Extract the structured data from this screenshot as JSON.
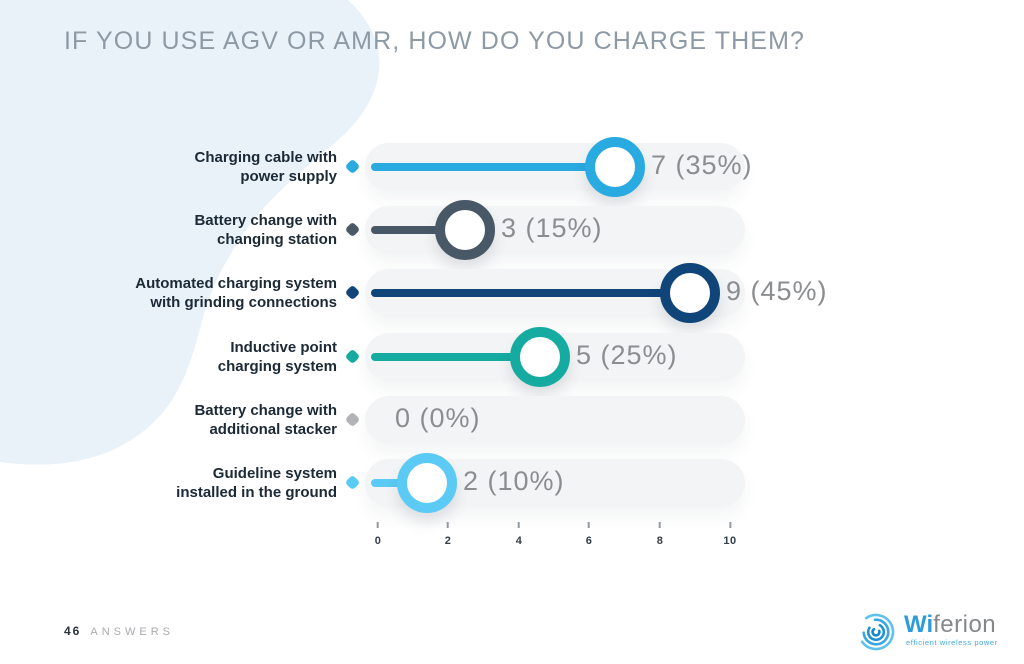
{
  "title": "IF YOU USE AGV OR AMR, HOW DO YOU CHARGE THEM?",
  "chart_data": {
    "type": "bar",
    "variant": "horizontal-lollipop",
    "title": "IF YOU USE AGV OR AMR, HOW DO YOU CHARGE THEM?",
    "categories": [
      "Charging cable with power supply",
      "Battery change with changing station",
      "Automated charging system with grinding connections",
      "Inductive point charging system",
      "Battery change with additional stacker",
      "Guideline system installed in the ground"
    ],
    "values": [
      7,
      3,
      9,
      5,
      0,
      2
    ],
    "value_labels": [
      "7 (35%)",
      "3 (15%)",
      "9 (45%)",
      "5 (25%)",
      "0 (0%)",
      "2 (10%)"
    ],
    "colors": [
      "#29ABE2",
      "#485866",
      "#10457A",
      "#16ABA1",
      "#B1B3B6",
      "#5BCBF5"
    ],
    "rows": [
      {
        "label_lines": [
          "Charging cable with",
          "power supply"
        ],
        "value": 7,
        "display": "7 (35%)",
        "color": "#29ABE2"
      },
      {
        "label_lines": [
          "Battery change with",
          "changing station"
        ],
        "value": 3,
        "display": "3 (15%)",
        "color": "#485866"
      },
      {
        "label_lines": [
          "Automated charging system",
          "with grinding connections"
        ],
        "value": 9,
        "display": "9 (45%)",
        "color": "#10457A"
      },
      {
        "label_lines": [
          "Inductive point",
          "charging system"
        ],
        "value": 5,
        "display": "5 (25%)",
        "color": "#16ABA1"
      },
      {
        "label_lines": [
          "Battery change with",
          "additional stacker"
        ],
        "value": 0,
        "display": "0 (0%)",
        "color": "#B1B3B6"
      },
      {
        "label_lines": [
          "Guideline system",
          "installed in the ground"
        ],
        "value": 2,
        "display": "2 (10%)",
        "color": "#5BCBF5"
      }
    ],
    "xticks": [
      0,
      2,
      4,
      6,
      8,
      10
    ],
    "xlim": [
      0,
      10
    ],
    "xlabel": "",
    "ylabel": "",
    "grid": false,
    "legend": false
  },
  "footer": {
    "answers_count": "46",
    "answers_label": "ANSWERS"
  },
  "logo": {
    "brand_prefix": "Wi",
    "brand_suffix": "ferion",
    "tagline": "efficient wireless power"
  },
  "colors": {
    "background_blob": "#E9F2F8",
    "row_pill": "#F3F4F5",
    "title_text": "#8D9AA5",
    "value_text": "#8B8E91",
    "category_text": "#1C2936"
  }
}
